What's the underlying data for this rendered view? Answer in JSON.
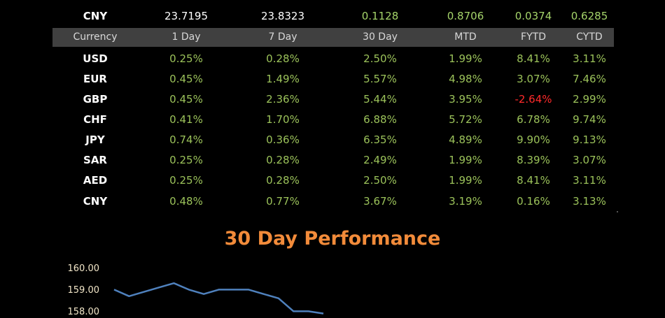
{
  "top_row": {
    "currency": "CNY",
    "values": [
      "23.7195",
      "23.8323",
      "0.1128",
      "0.8706",
      "0.0374",
      "0.6285"
    ]
  },
  "table": {
    "headers": [
      "Currency",
      "1 Day",
      "7 Day",
      "30 Day",
      "MTD",
      "FYTD",
      "CYTD"
    ],
    "rows": [
      {
        "currency": "USD",
        "values": [
          "0.25%",
          "0.28%",
          "2.50%",
          "1.99%",
          "8.41%",
          "3.11%"
        ]
      },
      {
        "currency": "EUR",
        "values": [
          "0.45%",
          "1.49%",
          "5.57%",
          "4.98%",
          "3.07%",
          "7.46%"
        ]
      },
      {
        "currency": "GBP",
        "values": [
          "0.45%",
          "2.36%",
          "5.44%",
          "3.95%",
          "-2.64%",
          "2.99%"
        ]
      },
      {
        "currency": "CHF",
        "values": [
          "0.41%",
          "1.70%",
          "6.88%",
          "5.72%",
          "6.78%",
          "9.74%"
        ]
      },
      {
        "currency": "JPY",
        "values": [
          "0.74%",
          "0.36%",
          "6.35%",
          "4.89%",
          "9.90%",
          "9.13%"
        ]
      },
      {
        "currency": "SAR",
        "values": [
          "0.25%",
          "0.28%",
          "2.49%",
          "1.99%",
          "8.39%",
          "3.07%"
        ]
      },
      {
        "currency": "AED",
        "values": [
          "0.25%",
          "0.28%",
          "2.50%",
          "1.99%",
          "8.41%",
          "3.11%"
        ]
      },
      {
        "currency": "CNY",
        "values": [
          "0.48%",
          "0.77%",
          "3.67%",
          "3.19%",
          "0.16%",
          "3.13%"
        ]
      }
    ]
  },
  "colors": {
    "positive": "#9bc25a",
    "negative": "#ff2a2a",
    "header_bg": "#404040",
    "title": "#f28b3a",
    "line": "#4f81bd"
  },
  "chart_data": {
    "type": "line",
    "title": "30 Day Performance",
    "y_ticks": [
      "160.00",
      "159.00",
      "158.00"
    ],
    "series": [
      {
        "values": [
          159.05,
          158.75,
          158.95,
          159.15,
          159.35,
          159.05,
          158.85,
          159.05,
          159.05,
          159.05,
          158.85,
          158.65,
          158.05,
          158.05,
          157.95
        ]
      }
    ]
  }
}
